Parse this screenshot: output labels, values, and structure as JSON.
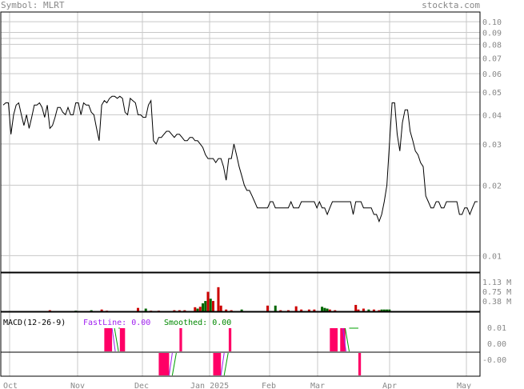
{
  "header": {
    "symbol_text": "Symbol: MLRT",
    "site": "stockta.com"
  },
  "colors": {
    "price_line": "#000000",
    "grid": "#c8c8c8",
    "frame": "#000000",
    "vol_up": "#006600",
    "vol_down": "#cc0000",
    "macd_fast": "#a020f0",
    "macd_slow": "#00a000",
    "macd_hist": "#ff0066"
  },
  "chart_data": [
    {
      "type": "line",
      "title": "",
      "scale": "log",
      "ylim": [
        0.0085,
        0.11
      ],
      "y_ticks": [
        0.1,
        0.09,
        0.08,
        0.07,
        0.06,
        0.05,
        0.04,
        0.03,
        0.02,
        0.01
      ],
      "y_tick_labels": [
        "0.10",
        "0.09",
        "0.08",
        "0.07",
        "0.06",
        "0.05",
        "0.04",
        "0.03",
        "0.02",
        "0.01"
      ],
      "x_tick_labels": [
        "Oct",
        "Nov",
        "Dec",
        "Jan 2025",
        "Feb",
        "Mar",
        "Apr",
        "May"
      ],
      "grid": true,
      "series": [
        {
          "values": [
            0.044,
            0.045,
            0.045,
            0.033,
            0.04,
            0.044,
            0.045,
            0.04,
            0.036,
            0.04,
            0.035,
            0.039,
            0.044,
            0.044,
            0.045,
            0.043,
            0.039,
            0.044,
            0.035,
            0.036,
            0.039,
            0.043,
            0.043,
            0.041,
            0.04,
            0.043,
            0.04,
            0.04,
            0.045,
            0.045,
            0.04,
            0.045,
            0.044,
            0.044,
            0.041,
            0.04,
            0.035,
            0.031,
            0.044,
            0.046,
            0.045,
            0.047,
            0.048,
            0.048,
            0.047,
            0.048,
            0.047,
            0.041,
            0.04,
            0.047,
            0.046,
            0.045,
            0.04,
            0.04,
            0.039,
            0.039,
            0.044,
            0.046,
            0.031,
            0.03,
            0.032,
            0.032,
            0.033,
            0.034,
            0.034,
            0.033,
            0.032,
            0.033,
            0.033,
            0.032,
            0.031,
            0.031,
            0.032,
            0.032,
            0.031,
            0.031,
            0.03,
            0.029,
            0.027,
            0.026,
            0.026,
            0.026,
            0.025,
            0.026,
            0.026,
            0.024,
            0.021,
            0.026,
            0.026,
            0.03,
            0.027,
            0.024,
            0.022,
            0.02,
            0.019,
            0.019,
            0.018,
            0.017,
            0.016,
            0.016,
            0.016,
            0.016,
            0.016,
            0.017,
            0.017,
            0.016,
            0.016,
            0.016,
            0.016,
            0.016,
            0.016,
            0.017,
            0.016,
            0.016,
            0.016,
            0.017,
            0.017,
            0.017,
            0.017,
            0.017,
            0.017,
            0.016,
            0.017,
            0.016,
            0.016,
            0.015,
            0.016,
            0.017,
            0.017,
            0.017,
            0.017,
            0.017,
            0.017,
            0.017,
            0.017,
            0.015,
            0.017,
            0.017,
            0.017,
            0.016,
            0.016,
            0.016,
            0.016,
            0.015,
            0.015,
            0.014,
            0.015,
            0.017,
            0.02,
            0.03,
            0.045,
            0.045,
            0.033,
            0.028,
            0.037,
            0.042,
            0.042,
            0.034,
            0.031,
            0.028,
            0.027,
            0.025,
            0.024,
            0.018,
            0.017,
            0.016,
            0.016,
            0.017,
            0.017,
            0.016,
            0.016,
            0.017,
            0.017,
            0.017,
            0.017,
            0.017,
            0.015,
            0.015,
            0.016,
            0.016,
            0.015,
            0.016,
            0.017,
            0.017
          ]
        }
      ]
    },
    {
      "type": "bar",
      "title": "",
      "y_tick_labels": [
        "1.13 M",
        "0.75 M",
        "0.38 M"
      ],
      "y_ticks": [
        1.13,
        0.75,
        0.38
      ],
      "ylim": [
        0,
        1.6
      ],
      "bars": [
        {
          "i": 18,
          "v": 0.05,
          "up": false
        },
        {
          "i": 28,
          "v": 0.03,
          "up": true
        },
        {
          "i": 34,
          "v": 0.05,
          "up": true
        },
        {
          "i": 38,
          "v": 0.08,
          "up": false
        },
        {
          "i": 40,
          "v": 0.03,
          "up": false
        },
        {
          "i": 52,
          "v": 0.15,
          "up": false
        },
        {
          "i": 55,
          "v": 0.12,
          "up": true
        },
        {
          "i": 57,
          "v": 0.03,
          "up": false
        },
        {
          "i": 60,
          "v": 0.03,
          "up": false
        },
        {
          "i": 66,
          "v": 0.05,
          "up": false
        },
        {
          "i": 68,
          "v": 0.05,
          "up": false
        },
        {
          "i": 70,
          "v": 0.05,
          "up": false
        },
        {
          "i": 74,
          "v": 0.18,
          "up": false
        },
        {
          "i": 75,
          "v": 0.12,
          "up": true
        },
        {
          "i": 76,
          "v": 0.2,
          "up": false
        },
        {
          "i": 77,
          "v": 0.35,
          "up": true
        },
        {
          "i": 78,
          "v": 0.45,
          "up": true
        },
        {
          "i": 79,
          "v": 0.85,
          "up": false
        },
        {
          "i": 80,
          "v": 0.55,
          "up": true
        },
        {
          "i": 81,
          "v": 0.45,
          "up": false
        },
        {
          "i": 83,
          "v": 1.05,
          "up": false
        },
        {
          "i": 84,
          "v": 0.25,
          "up": false
        },
        {
          "i": 86,
          "v": 0.08,
          "up": false
        },
        {
          "i": 88,
          "v": 0.05,
          "up": false
        },
        {
          "i": 92,
          "v": 0.08,
          "up": true
        },
        {
          "i": 102,
          "v": 0.25,
          "up": false
        },
        {
          "i": 105,
          "v": 0.25,
          "up": true
        },
        {
          "i": 107,
          "v": 0.05,
          "up": false
        },
        {
          "i": 110,
          "v": 0.05,
          "up": false
        },
        {
          "i": 113,
          "v": 0.22,
          "up": false
        },
        {
          "i": 115,
          "v": 0.08,
          "up": false
        },
        {
          "i": 118,
          "v": 0.08,
          "up": false
        },
        {
          "i": 120,
          "v": 0.08,
          "up": false
        },
        {
          "i": 123,
          "v": 0.2,
          "up": true
        },
        {
          "i": 124,
          "v": 0.15,
          "up": true
        },
        {
          "i": 125,
          "v": 0.12,
          "up": true
        },
        {
          "i": 126,
          "v": 0.08,
          "up": false
        },
        {
          "i": 128,
          "v": 0.05,
          "up": false
        },
        {
          "i": 136,
          "v": 0.28,
          "up": false
        },
        {
          "i": 137,
          "v": 0.08,
          "up": false
        },
        {
          "i": 139,
          "v": 0.12,
          "up": false
        },
        {
          "i": 141,
          "v": 0.08,
          "up": true
        },
        {
          "i": 143,
          "v": 0.08,
          "up": false
        },
        {
          "i": 145,
          "v": 0.05,
          "up": false
        },
        {
          "i": 146,
          "v": 0.08,
          "up": true
        },
        {
          "i": 147,
          "v": 0.08,
          "up": true
        },
        {
          "i": 148,
          "v": 0.08,
          "up": true
        },
        {
          "i": 149,
          "v": 0.08,
          "up": true
        }
      ]
    },
    {
      "type": "line",
      "title": "MACD(12-26-9)",
      "legend": [
        {
          "name": "FastLine: 0.00",
          "color": "#a020f0"
        },
        {
          "name": "Smoothed: 0.00",
          "color": "#008800"
        }
      ],
      "upper_ticks": [
        "0.01",
        "0.00"
      ],
      "lower_ticks": [
        "-0.00"
      ],
      "upper_values": [
        0.01,
        0.0
      ],
      "lower_values": [
        -0.0
      ],
      "upper_blocks": [
        [
          39,
          42
        ],
        [
          45,
          47
        ],
        [
          68,
          69
        ],
        [
          87,
          88
        ],
        [
          126,
          129
        ],
        [
          130,
          132
        ]
      ],
      "lower_blocks": [
        [
          60,
          64
        ],
        [
          81,
          84
        ],
        [
          137,
          138
        ]
      ],
      "upper_lines": [
        [
          42,
          45
        ],
        [
          131,
          137
        ]
      ],
      "lower_lines": [
        [
          64,
          70
        ],
        [
          84,
          88
        ]
      ]
    }
  ]
}
